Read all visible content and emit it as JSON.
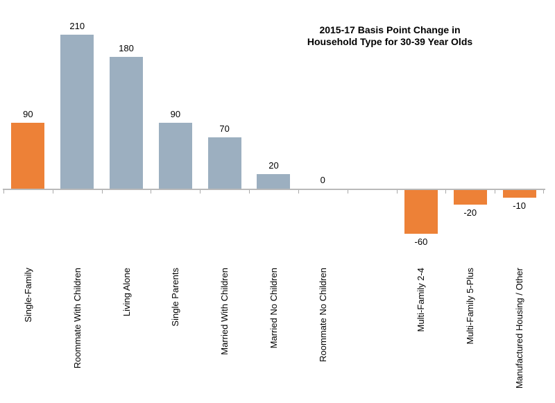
{
  "chart": {
    "title_lines": [
      "2015-17 Basis Point Change in",
      "Household Type for 30-39 Year Olds"
    ]
  },
  "chart_data": {
    "type": "bar",
    "title": "2015-17 Basis Point Change in Household Type for 30-39 Year Olds",
    "categories": [
      "Single-Family",
      "Roommate With Children",
      "Living Alone",
      "Single Parents",
      "Married With Children",
      "Married No Children",
      "Roommate No Children",
      "",
      "Multi-Family 2-4",
      "Multi-Family 5-Plus",
      "Manufactured Housing / Other"
    ],
    "values": [
      90,
      210,
      180,
      90,
      70,
      20,
      0,
      null,
      -60,
      -20,
      -10
    ],
    "bar_color_keys": [
      "orange",
      "blueGray",
      "blueGray",
      "blueGray",
      "blueGray",
      "blueGray",
      "blueGray",
      null,
      "orange",
      "orange",
      "orange"
    ],
    "palette": {
      "orange": "#ED8137",
      "blueGray": "#9CAFC0",
      "axis": "#B9B9B9",
      "tick": "#A9A9A9",
      "text": "#000000"
    },
    "value_labels": [
      "90",
      "210",
      "180",
      "90",
      "70",
      "20",
      "0",
      null,
      "-60",
      "-20",
      "-10"
    ],
    "ylim": [
      -60,
      210
    ],
    "xlabel": "",
    "ylabel": "",
    "legend_position": "none",
    "grid": false,
    "category_labels_rotated_bottom_to_top": true
  }
}
